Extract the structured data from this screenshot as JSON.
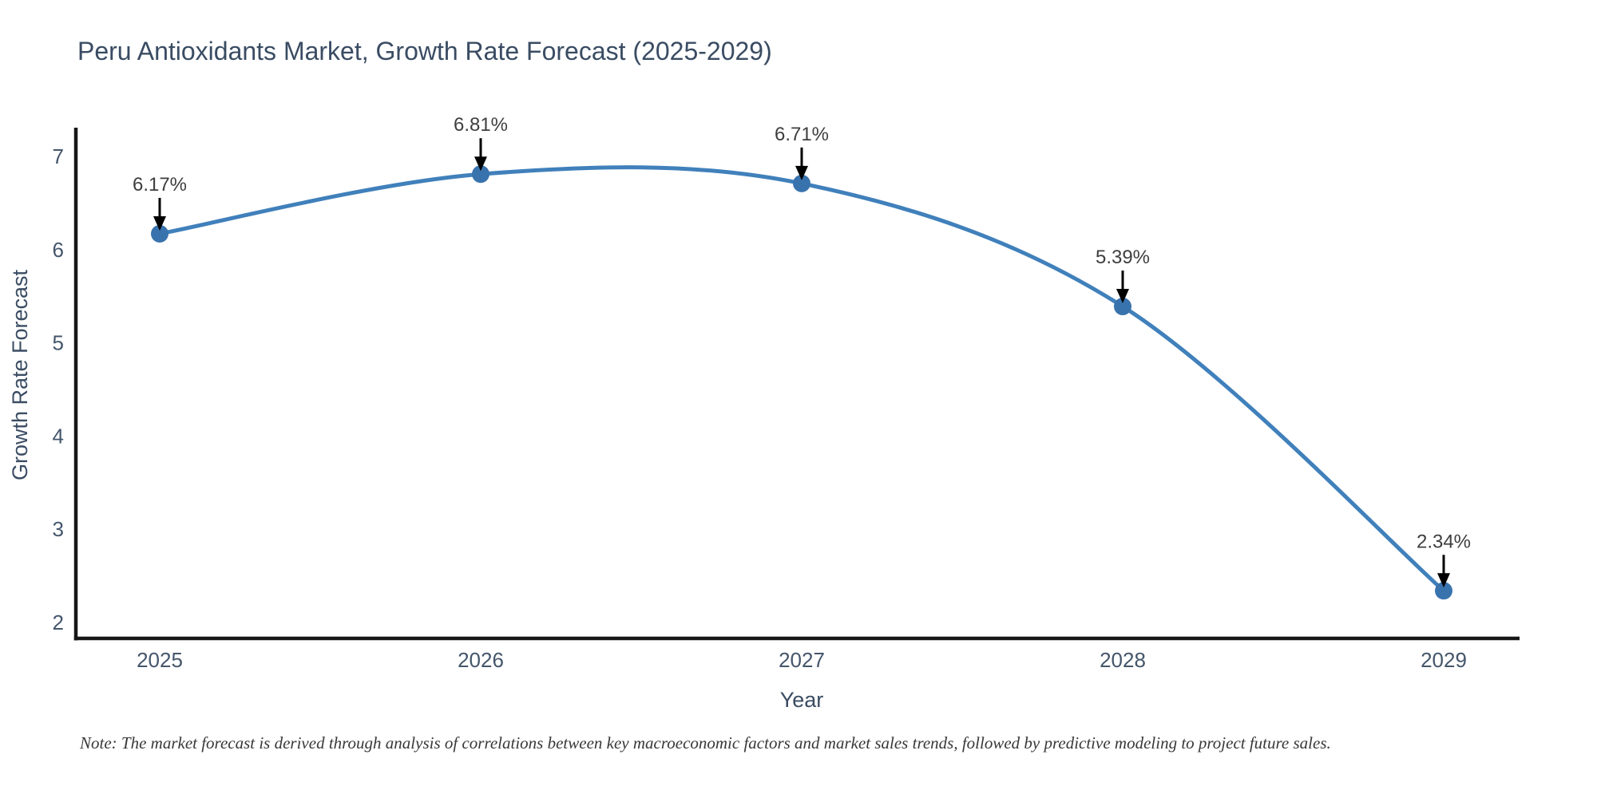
{
  "title": "Peru Antioxidants Market, Growth Rate Forecast (2025-2029)",
  "note": "Note: The market forecast is derived through analysis of correlations between key macroeconomic factors and market sales trends, followed by predictive modeling to project future sales.",
  "chart_data": {
    "type": "line",
    "line_shape": "spline",
    "title": "Peru Antioxidants Market, Growth Rate Forecast (2025-2029)",
    "xlabel": "Year",
    "ylabel": "Growth Rate Forecast",
    "categories": [
      "2025",
      "2026",
      "2027",
      "2028",
      "2029"
    ],
    "values": [
      6.17,
      6.81,
      6.71,
      5.39,
      2.34
    ],
    "annotations": [
      "6.17%",
      "6.81%",
      "6.71%",
      "5.39%",
      "2.34%"
    ],
    "yticks": [
      2,
      3,
      4,
      5,
      6,
      7
    ],
    "ylim": [
      1.83,
      7.31
    ],
    "grid": false,
    "legend_position": "none",
    "markers": true,
    "colors": {
      "line": "#4080bb",
      "marker": "#3973ad",
      "axis": "#161616",
      "arrow": "#000000",
      "title_text": "#3a4c63",
      "tick_text": "#44566b",
      "annotation_text": "#3e3e3e",
      "background": "#ffffff"
    }
  }
}
